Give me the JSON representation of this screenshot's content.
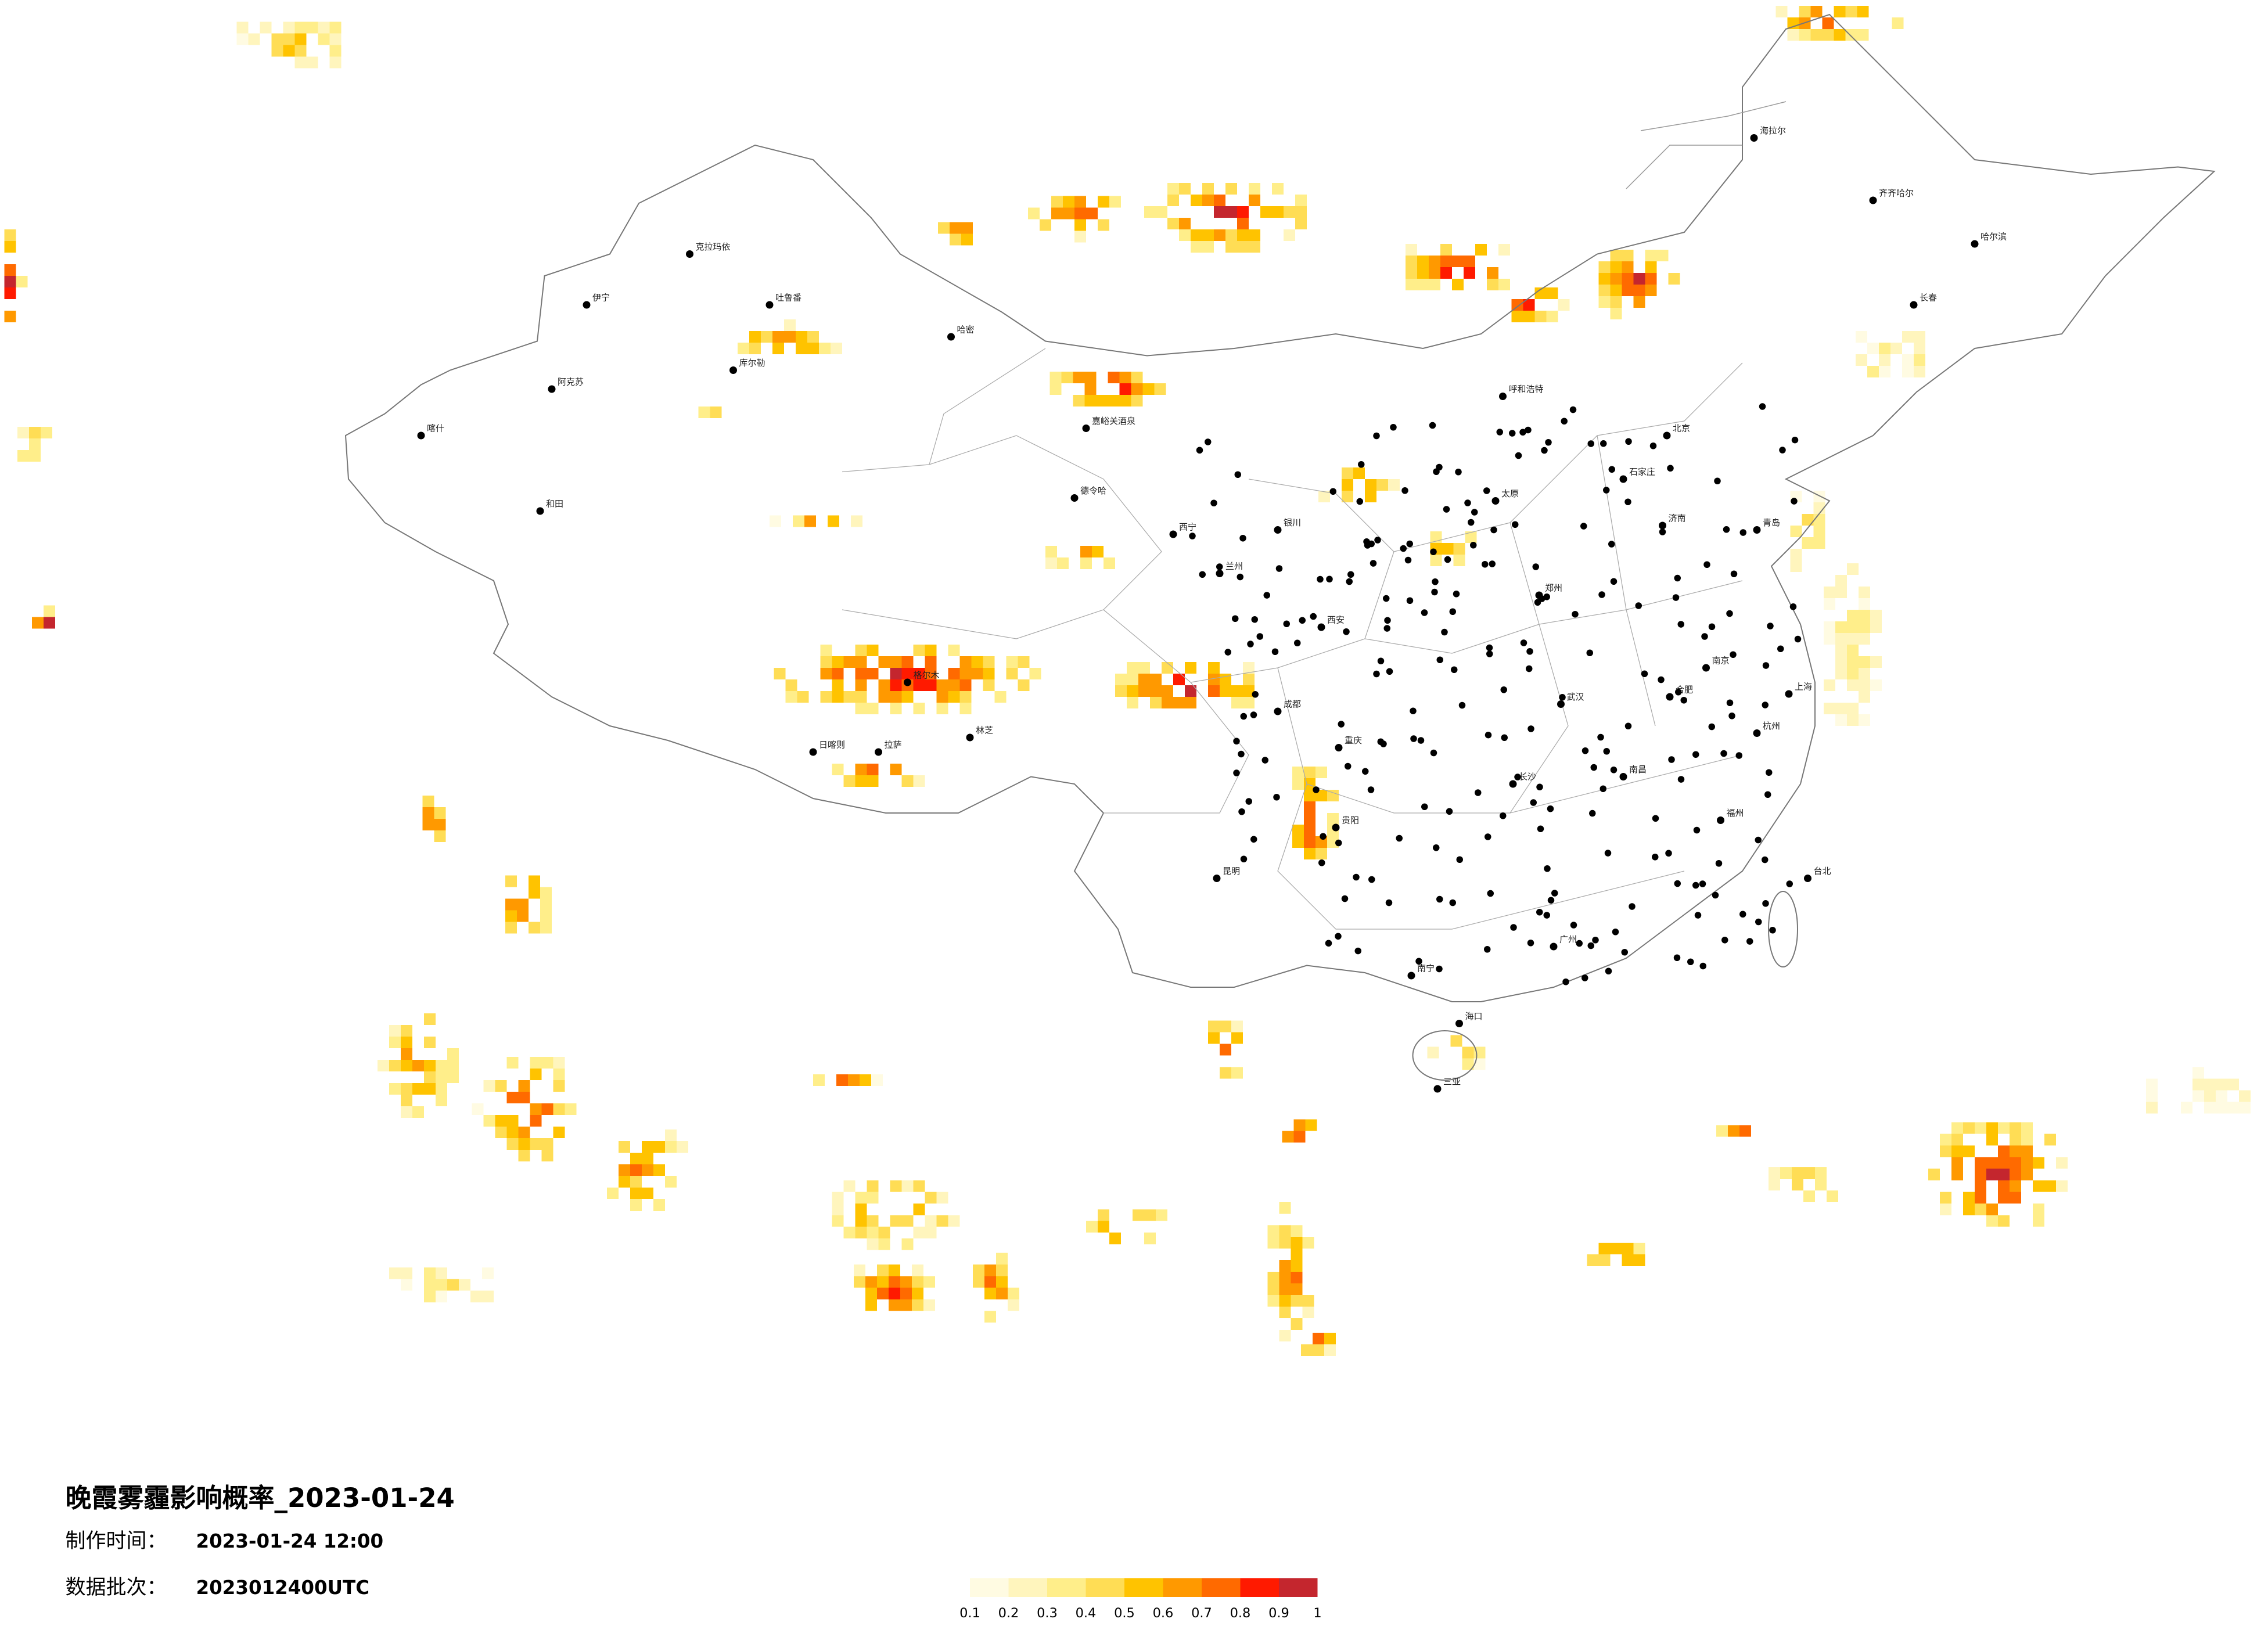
{
  "title": "晚霞雾霾影响概率_2023-01-24",
  "production": {
    "label": "制作时间：",
    "value": "2023-01-24 12:00"
  },
  "batch": {
    "label": "数据批次：",
    "value": "2023012400UTC"
  },
  "legend": {
    "ticks": [
      0.1,
      0.2,
      0.3,
      0.4,
      0.5,
      0.6,
      0.7,
      0.8,
      0.9,
      1
    ],
    "colors": [
      "#fffbe2",
      "#fff5bd",
      "#ffee8a",
      "#ffdd55",
      "#ffc300",
      "#ff9900",
      "#ff6a00",
      "#ff1a00",
      "#c4262e"
    ]
  },
  "cities": [
    "克拉玛依",
    "伊宁",
    "阿克苏",
    "喀什",
    "和田",
    "哈密",
    "库尔勒",
    "吐鲁番",
    "嘉峪关酒泉",
    "德令哈",
    "格尔木",
    "日喀则",
    "拉萨",
    "林芝",
    "海拉尔",
    "齐齐哈尔",
    "哈尔滨",
    "长春",
    "呼和浩特",
    "北京",
    "石家庄",
    "太原",
    "银川",
    "西宁",
    "兰州",
    "西安",
    "郑州",
    "济南",
    "青岛",
    "南京",
    "上海",
    "杭州",
    "合肥",
    "武汉",
    "长沙",
    "南昌",
    "福州",
    "台北",
    "广州",
    "南宁",
    "海口",
    "三亚",
    "昆明",
    "贵阳",
    "重庆",
    "成都"
  ]
}
